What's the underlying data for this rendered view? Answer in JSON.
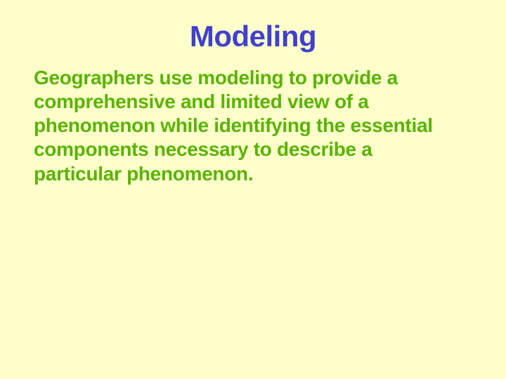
{
  "slide": {
    "title": "Modeling",
    "body": "Geographers use modeling to provide a comprehensive and limited view of a phenomenon while identifying the essential components necessary to describe a particular phenomenon.",
    "background_color": "#ffffcc",
    "title_color": "#4040cc",
    "title_fontsize": 42,
    "body_color": "#59b300",
    "body_fontsize": 28,
    "font_family": "Franklin Gothic Medium"
  }
}
